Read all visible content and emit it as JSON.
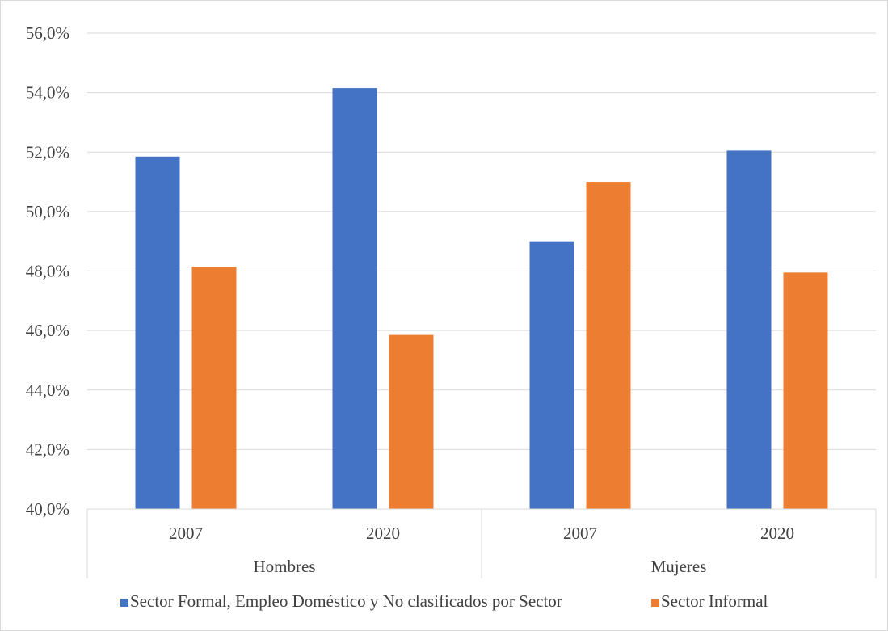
{
  "chart_data": {
    "type": "bar",
    "groups": [
      {
        "label": "Hombres",
        "categories": [
          "2007",
          "2020"
        ]
      },
      {
        "label": "Mujeres",
        "categories": [
          "2007",
          "2020"
        ]
      }
    ],
    "series": [
      {
        "name": "Sector Formal, Empleo Doméstico y No clasificados por Sector",
        "color": "#4472C4",
        "values": [
          51.85,
          54.15,
          49.0,
          52.05
        ]
      },
      {
        "name": "Sector Informal",
        "color": "#ED7D31",
        "values": [
          48.15,
          45.85,
          51.0,
          47.95
        ]
      }
    ],
    "ylim": [
      40,
      56
    ],
    "yticks": [
      "40,0%",
      "42,0%",
      "44,0%",
      "46,0%",
      "48,0%",
      "50,0%",
      "52,0%",
      "54,0%",
      "56,0%"
    ],
    "grid": true,
    "legend_position": "bottom"
  }
}
